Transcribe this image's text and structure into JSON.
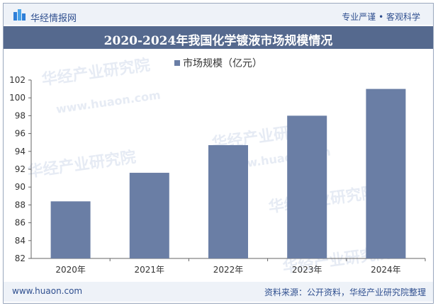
{
  "header": {
    "brand": "华经情报网",
    "tagline": "专业严谨 • 客观科学"
  },
  "footer": {
    "url": "www.huaon.com",
    "source": "资料来源：公开资料，华经产业研究院整理"
  },
  "watermarks": [
    "华经产业研究院",
    "www.huaon.com"
  ],
  "colors": {
    "bar": "#6a7ea5",
    "title_bg": "#55698e",
    "band": "#eef2f8"
  },
  "chart_data": {
    "type": "bar",
    "title": "2020-2024年我国化学镀液市场规模情况",
    "categories": [
      "2020年",
      "2021年",
      "2022年",
      "2023年",
      "2024年"
    ],
    "series": [
      {
        "name": "市场规模（亿元）",
        "values": [
          88.4,
          91.6,
          94.7,
          98.0,
          101.0
        ]
      }
    ],
    "ylim": [
      82,
      102
    ],
    "yticks": [
      82,
      84,
      86,
      88,
      90,
      92,
      94,
      96,
      98,
      100,
      102
    ],
    "xlabel": "",
    "ylabel": "",
    "legend_position": "top-center",
    "grid": false
  }
}
